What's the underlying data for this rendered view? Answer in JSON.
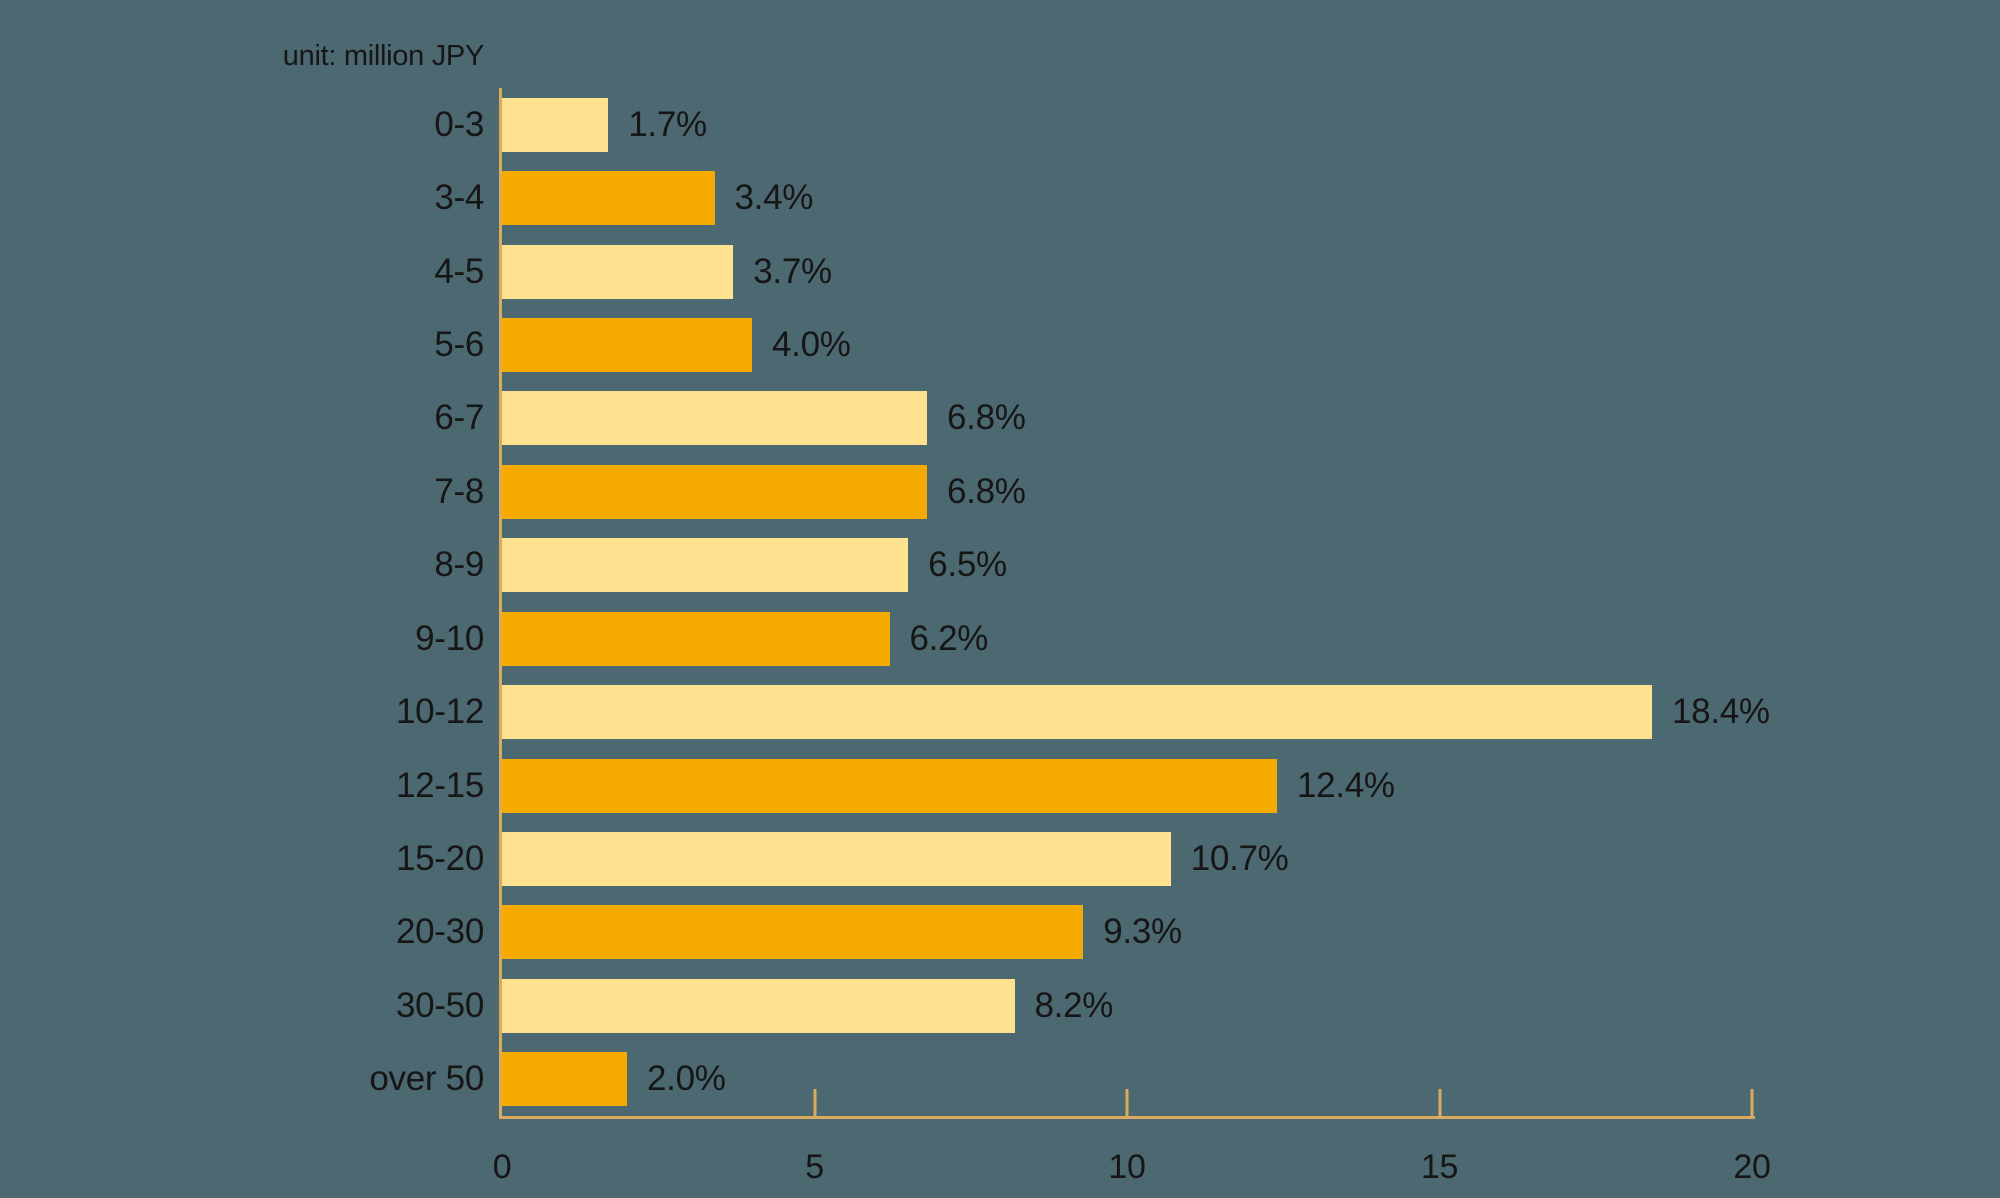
{
  "chart_data": {
    "type": "bar",
    "orientation": "horizontal",
    "title": "unit: million JPY",
    "categories": [
      "0-3",
      "3-4",
      "4-5",
      "5-6",
      "6-7",
      "7-8",
      "8-9",
      "9-10",
      "10-12",
      "12-15",
      "15-20",
      "20-30",
      "30-50",
      "over 50"
    ],
    "values": [
      1.7,
      3.4,
      3.7,
      4.0,
      6.8,
      6.8,
      6.5,
      6.2,
      18.4,
      12.4,
      10.7,
      9.3,
      8.2,
      2.0
    ],
    "value_labels": [
      "1.7%",
      "3.4%",
      "3.7%",
      "4.0%",
      "6.8%",
      "6.8%",
      "6.5%",
      "6.2%",
      "18.4%",
      "12.4%",
      "10.7%",
      "9.3%",
      "8.2%",
      "2.0%"
    ],
    "xlim": [
      0,
      20
    ],
    "x_ticks": [
      0,
      5,
      10,
      15,
      20
    ],
    "x_tick_labels": [
      "0",
      "5",
      "10",
      "15",
      "20"
    ],
    "legend": "none",
    "grid": "off",
    "colors": {
      "bar_alternating": [
        "#FFE290",
        "#F5AB00"
      ],
      "axis": "#DBAA5F",
      "background": "#4C6870",
      "text": "#161616"
    }
  }
}
